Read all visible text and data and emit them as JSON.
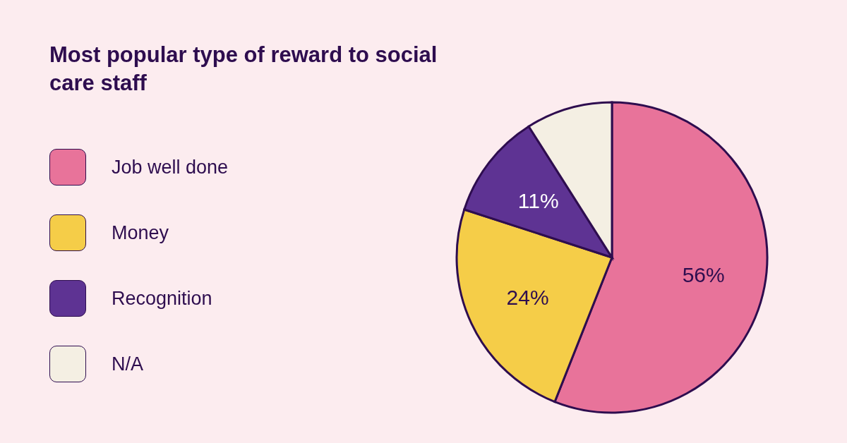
{
  "chart_data": {
    "type": "pie",
    "title": "Most popular type of reward to social care staff",
    "categories": [
      "Job well done",
      "Money",
      "Recognition",
      "N/A"
    ],
    "values": [
      56,
      24,
      11,
      9
    ],
    "colors": [
      "#e8739a",
      "#f5cd48",
      "#5e3393",
      "#f4efe3"
    ],
    "value_labels": [
      "56%",
      "24%",
      "11%",
      null
    ],
    "legend": "left"
  }
}
